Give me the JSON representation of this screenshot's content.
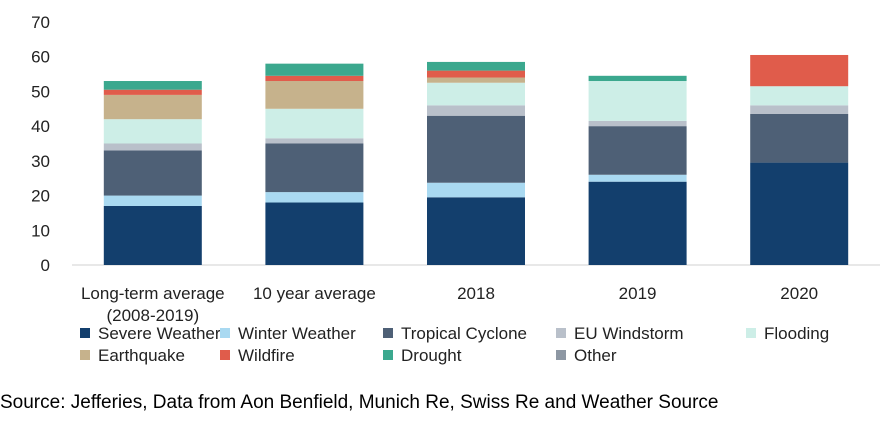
{
  "chart_data": {
    "type": "bar",
    "stacked": true,
    "categories": [
      "Long-term average\n(2008-2019)",
      "10 year average",
      "2018",
      "2019",
      "2020"
    ],
    "ylim": [
      0,
      70
    ],
    "yticks": [
      0,
      10,
      20,
      30,
      40,
      50,
      60,
      70
    ],
    "grid": false,
    "legend_position": "bottom",
    "series": [
      {
        "name": "Severe Weather",
        "color": "#133f6d",
        "values": [
          17,
          18,
          19.5,
          24,
          29.5
        ]
      },
      {
        "name": "Winter Weather",
        "color": "#a9d9f1",
        "values": [
          3,
          3,
          4.2,
          2,
          0
        ]
      },
      {
        "name": "Tropical Cyclone",
        "color": "#4e6076",
        "values": [
          13,
          14,
          19.3,
          14,
          14
        ]
      },
      {
        "name": "EU Windstorm",
        "color": "#b9c0ca",
        "values": [
          2,
          1.5,
          3,
          1.5,
          2.5
        ]
      },
      {
        "name": "Flooding",
        "color": "#cdeee7",
        "values": [
          7,
          8.5,
          6.5,
          11.5,
          5.5
        ]
      },
      {
        "name": "Earthquake",
        "color": "#c6b28c",
        "values": [
          7,
          8,
          1.5,
          0,
          0
        ]
      },
      {
        "name": "Wildfire",
        "color": "#e05c4b",
        "values": [
          1.5,
          1.5,
          2,
          0,
          9
        ]
      },
      {
        "name": "Drought",
        "color": "#3ba88e",
        "values": [
          2.5,
          3.5,
          2.5,
          1.5,
          0
        ]
      },
      {
        "name": "Other",
        "color": "#8d97a3",
        "values": [
          0,
          0,
          0,
          0,
          0
        ]
      }
    ]
  },
  "source": "Source: Jefferies, Data from Aon Benfield, Munich Re, Swiss Re and Weather Source"
}
